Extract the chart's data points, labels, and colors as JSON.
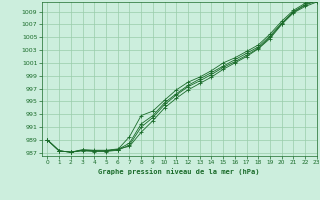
{
  "title": "Graphe pression niveau de la mer (hPa)",
  "bg_color": "#cceedd",
  "grid_color": "#99ccaa",
  "line_color": "#1a6b2a",
  "marker_color": "#1a6b2a",
  "xlim": [
    -0.5,
    23
  ],
  "ylim": [
    986.5,
    1010.5
  ],
  "yticks": [
    987,
    989,
    991,
    993,
    995,
    997,
    999,
    1001,
    1003,
    1005,
    1007,
    1009
  ],
  "xticks": [
    0,
    1,
    2,
    3,
    4,
    5,
    6,
    7,
    8,
    9,
    10,
    11,
    12,
    13,
    14,
    15,
    16,
    17,
    18,
    19,
    20,
    21,
    22,
    23
  ],
  "series": [
    [
      989.0,
      987.3,
      987.1,
      987.5,
      987.4,
      987.4,
      987.6,
      988.0,
      990.2,
      992.0,
      994.0,
      995.5,
      996.8,
      997.8,
      998.8,
      1000.0,
      1001.0,
      1002.0,
      1003.2,
      1004.8,
      1007.0,
      1008.8,
      1009.8,
      1010.5
    ],
    [
      989.0,
      987.3,
      987.1,
      987.4,
      987.3,
      987.3,
      987.5,
      988.5,
      991.5,
      992.8,
      994.8,
      996.2,
      997.5,
      998.5,
      999.5,
      1000.5,
      1001.5,
      1002.5,
      1003.5,
      1005.2,
      1007.2,
      1009.0,
      1010.1,
      1010.8
    ],
    [
      989.0,
      987.3,
      987.1,
      987.4,
      987.3,
      987.3,
      987.5,
      989.5,
      992.8,
      993.5,
      995.2,
      996.8,
      998.0,
      998.8,
      999.8,
      1001.0,
      1001.8,
      1002.8,
      1003.8,
      1005.5,
      1007.5,
      1009.2,
      1010.3,
      1011.0
    ],
    [
      989.0,
      987.3,
      987.1,
      987.3,
      987.2,
      987.2,
      987.4,
      988.2,
      991.0,
      992.5,
      994.5,
      996.0,
      997.3,
      998.2,
      999.2,
      1000.3,
      1001.2,
      1002.2,
      1003.3,
      1005.0,
      1007.1,
      1008.9,
      1010.0,
      1010.7
    ]
  ]
}
